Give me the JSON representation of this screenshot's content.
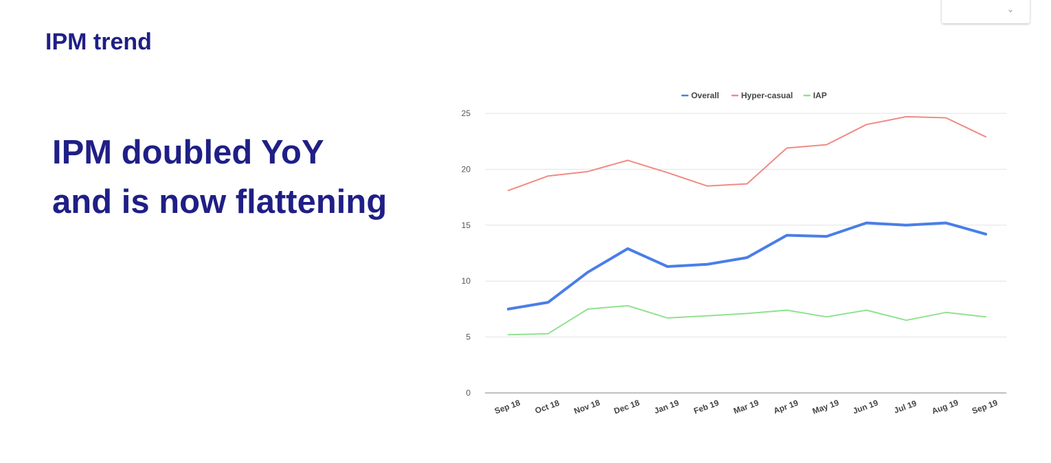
{
  "header": {
    "title": "IPM trend"
  },
  "headline": {
    "line1": "IPM doubled YoY",
    "line2": "and is now flattening"
  },
  "chart_data": {
    "type": "line",
    "title": "",
    "xlabel": "",
    "ylabel": "",
    "categories": [
      "Sep 18",
      "Oct 18",
      "Nov 18",
      "Dec 18",
      "Jan 19",
      "Feb 19",
      "Mar 19",
      "Apr 19",
      "May 19",
      "Jun 19",
      "Jul 19",
      "Aug 19",
      "Sep 19"
    ],
    "ylim": [
      0,
      25
    ],
    "yticks": [
      0,
      5,
      10,
      15,
      20,
      25
    ],
    "grid": true,
    "legend_position": "top",
    "series": [
      {
        "name": "Overall",
        "color": "#4a7ee8",
        "values": [
          7.5,
          8.1,
          10.8,
          12.9,
          11.3,
          11.5,
          12.1,
          14.1,
          14.0,
          15.2,
          15.0,
          15.2,
          14.2
        ]
      },
      {
        "name": "Hyper-casual",
        "color": "#f08a84",
        "values": [
          18.1,
          19.4,
          19.8,
          20.8,
          19.7,
          18.5,
          18.7,
          21.9,
          22.2,
          24.0,
          24.7,
          24.6,
          22.9
        ]
      },
      {
        "name": "IAP",
        "color": "#8fe28f",
        "values": [
          5.2,
          5.3,
          7.5,
          7.8,
          6.7,
          6.9,
          7.1,
          7.4,
          6.8,
          7.4,
          6.5,
          7.2,
          6.8
        ]
      }
    ]
  }
}
